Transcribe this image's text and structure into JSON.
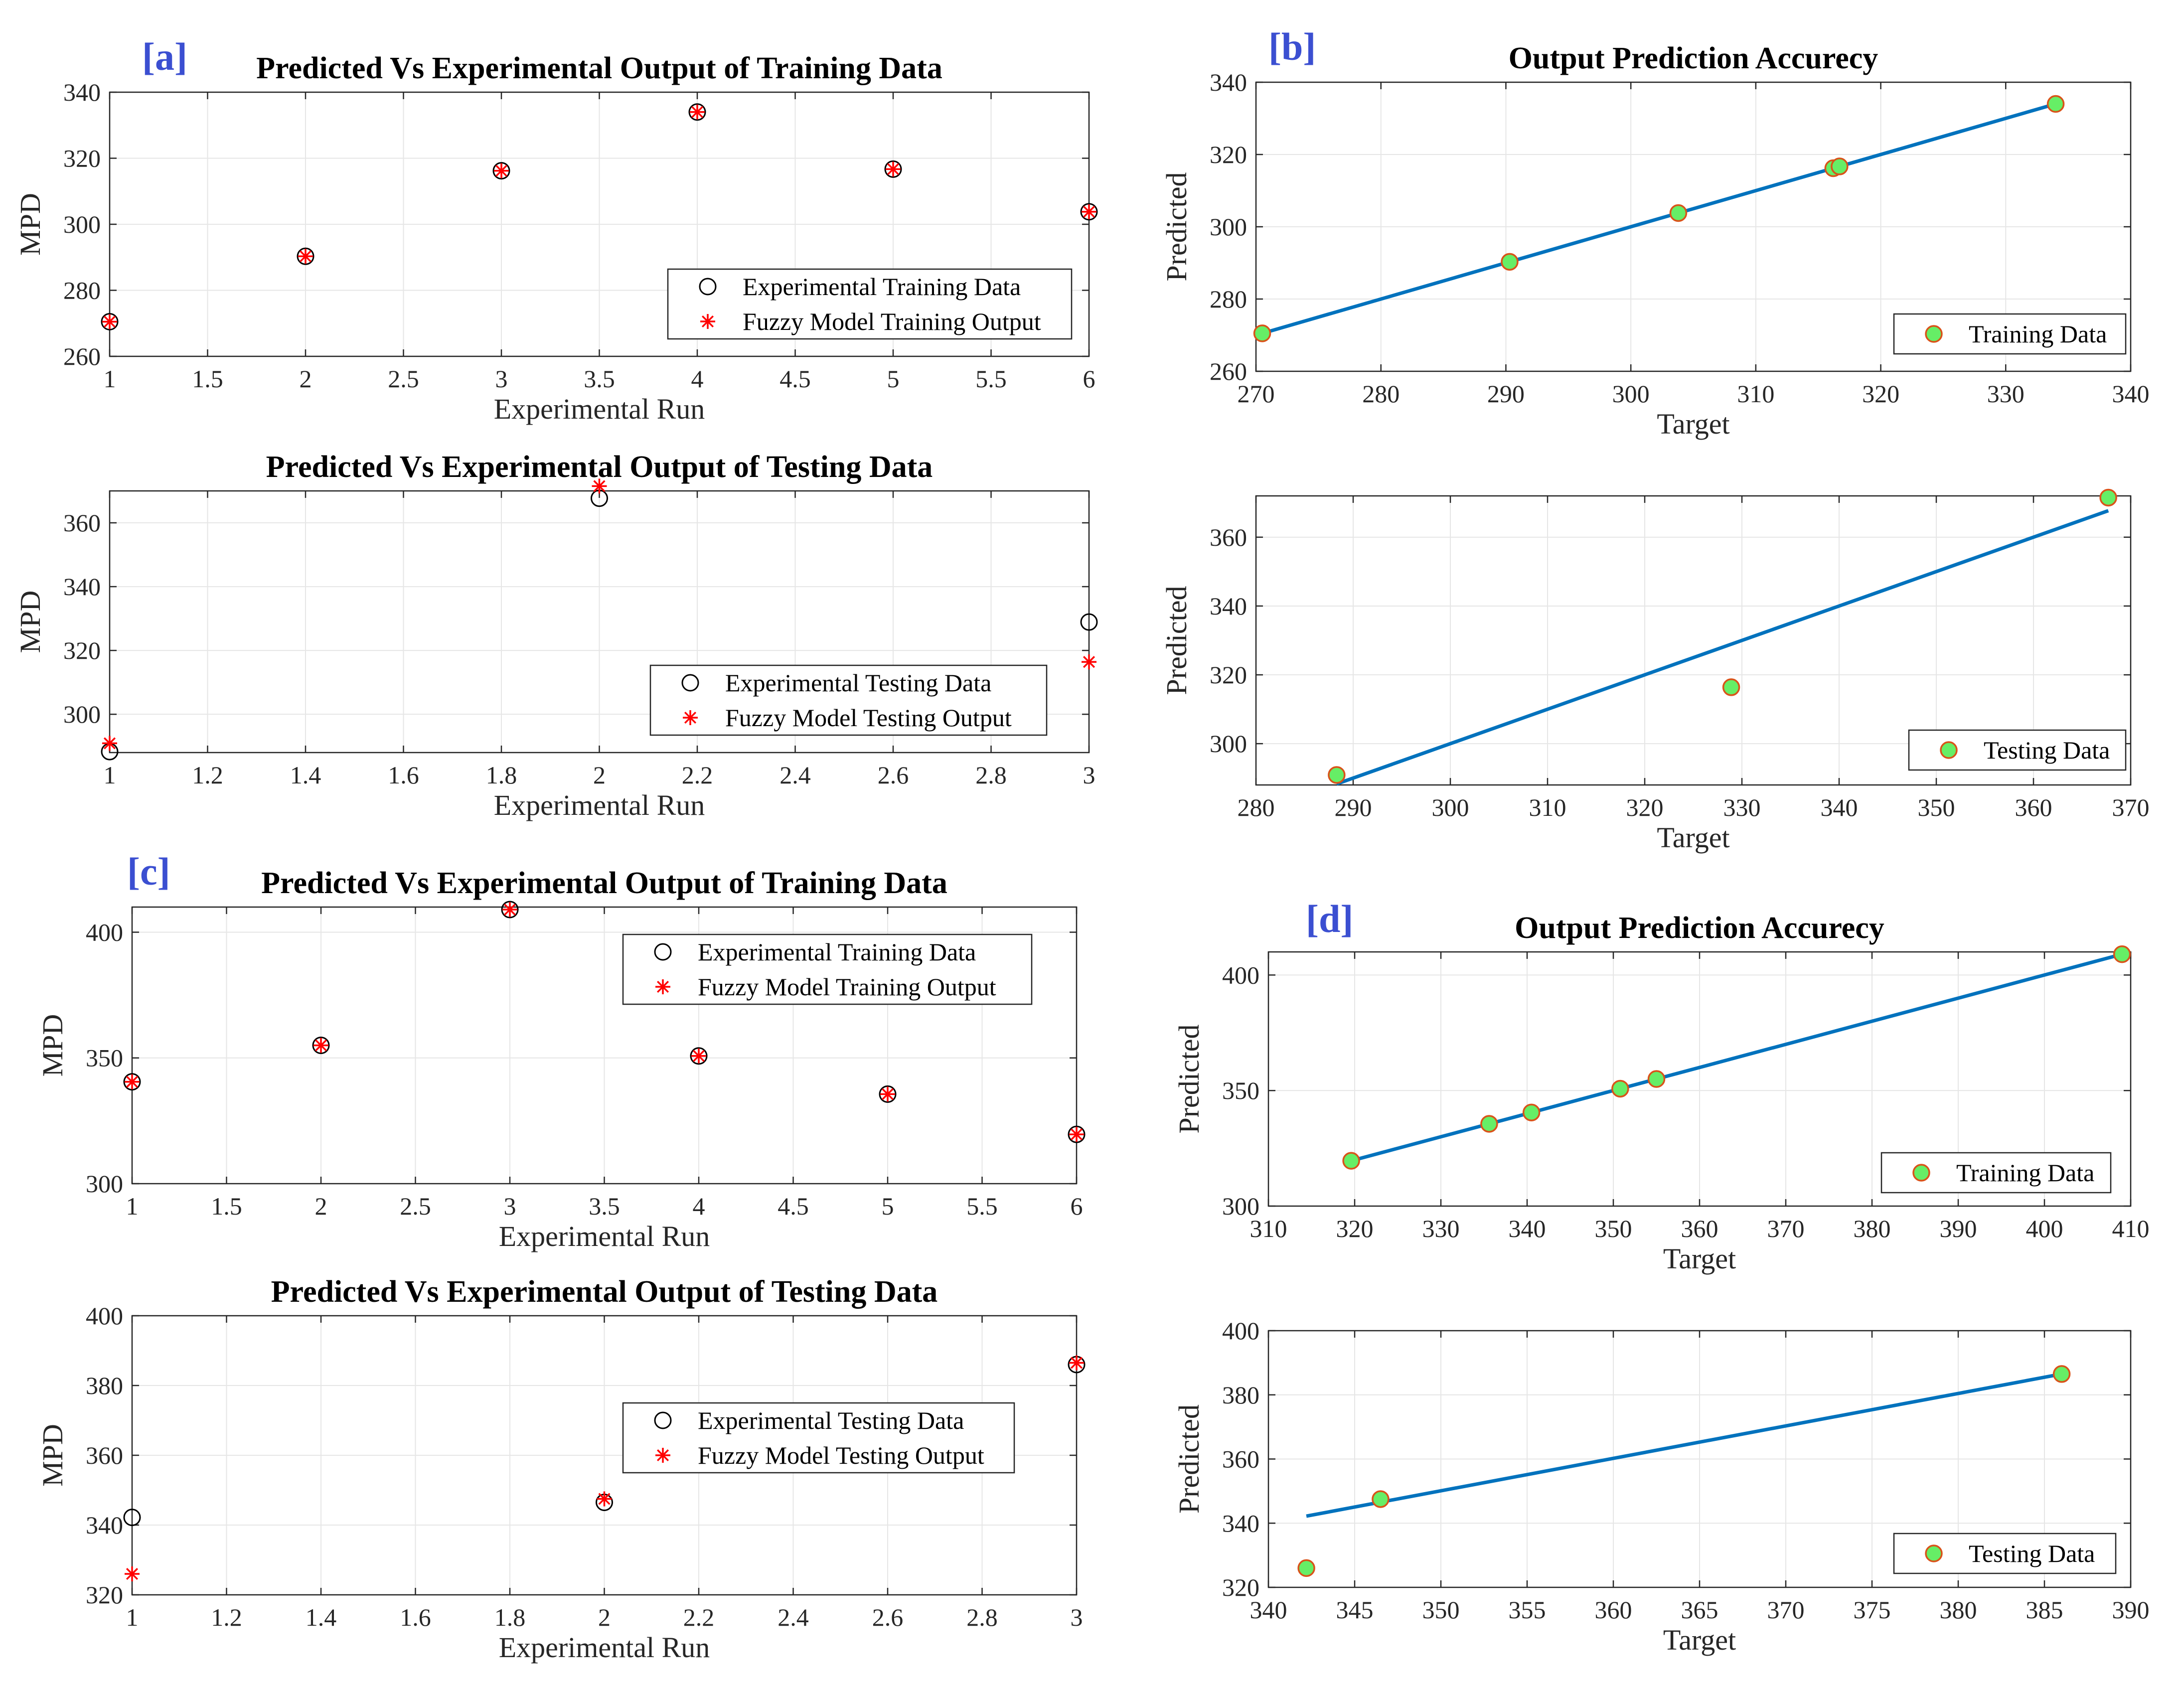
{
  "colors": {
    "marker_red": "#ff0000",
    "line_blue": "#0072bd",
    "fill_green": "#66ee66",
    "edge_orange": "#d95319",
    "grid": "#e6e6e6",
    "panel_label": "#3b4fd1"
  },
  "chart_data": [
    {
      "id": "a1",
      "panel_label": "[a]",
      "type": "scatter",
      "title": "Predicted Vs Experimental Output of Training Data",
      "xlabel": "Experimental Run",
      "ylabel": "MPD",
      "xlim": [
        1,
        6
      ],
      "ylim": [
        260,
        340
      ],
      "xticks": [
        1,
        1.5,
        2,
        2.5,
        3,
        3.5,
        4,
        4.5,
        5,
        5.5,
        6
      ],
      "yticks": [
        260,
        280,
        300,
        320,
        340
      ],
      "series": [
        {
          "name": "Experimental Training Data",
          "marker": "circle",
          "x": [
            1,
            2,
            3,
            4,
            5,
            6
          ],
          "y": [
            270.5,
            290.3,
            316.2,
            334.0,
            316.7,
            303.8
          ]
        },
        {
          "name": "Fuzzy Model Training Output",
          "marker": "asterisk",
          "x": [
            1,
            2,
            3,
            4,
            5,
            6
          ],
          "y": [
            270.5,
            290.3,
            316.2,
            334.0,
            316.7,
            303.8
          ]
        }
      ],
      "legend": "bottom-right"
    },
    {
      "id": "a2",
      "panel_label": "",
      "type": "scatter",
      "title": "Predicted Vs Experimental Output of Testing Data",
      "xlabel": "Experimental Run",
      "ylabel": "MPD",
      "xlim": [
        1,
        3
      ],
      "ylim": [
        288,
        370
      ],
      "xticks": [
        1,
        1.2,
        1.4,
        1.6,
        1.8,
        2,
        2.2,
        2.4,
        2.6,
        2.8,
        3
      ],
      "yticks": [
        300,
        320,
        340,
        360
      ],
      "series": [
        {
          "name": "Experimental Testing Data",
          "marker": "circle",
          "x": [
            1,
            2,
            3
          ],
          "y": [
            288.3,
            367.7,
            328.9
          ]
        },
        {
          "name": "Fuzzy Model Testing Output",
          "marker": "asterisk",
          "x": [
            1,
            2,
            3
          ],
          "y": [
            290.9,
            371.5,
            316.4
          ]
        }
      ],
      "legend": "bottom-right"
    },
    {
      "id": "b1",
      "panel_label": "[b]",
      "type": "scatter",
      "title": "Output Prediction Accurecy",
      "xlabel": "Target",
      "ylabel": "Predicted",
      "xlim": [
        270,
        340
      ],
      "ylim": [
        260,
        340
      ],
      "xticks": [
        270,
        280,
        290,
        300,
        310,
        320,
        330,
        340
      ],
      "yticks": [
        260,
        280,
        300,
        320,
        340
      ],
      "fit_line": {
        "x": [
          270.5,
          334.0
        ],
        "y": [
          270.5,
          334.0
        ]
      },
      "series": [
        {
          "name": "Training Data",
          "marker": "dot",
          "x": [
            270.5,
            290.3,
            303.8,
            316.2,
            316.7,
            334.0
          ],
          "y": [
            270.5,
            290.3,
            303.8,
            316.2,
            316.7,
            334.0
          ]
        }
      ],
      "legend": "bottom-right"
    },
    {
      "id": "b2",
      "panel_label": "",
      "type": "scatter",
      "title": "",
      "xlabel": "Target",
      "ylabel": "Predicted",
      "xlim": [
        280,
        370
      ],
      "ylim": [
        288,
        372
      ],
      "xticks": [
        280,
        290,
        300,
        310,
        320,
        330,
        340,
        350,
        360,
        370
      ],
      "yticks": [
        300,
        320,
        340,
        360
      ],
      "fit_line": {
        "x": [
          288.3,
          367.7
        ],
        "y": [
          288.3,
          367.7
        ]
      },
      "series": [
        {
          "name": "Testing Data",
          "marker": "dot",
          "x": [
            288.3,
            328.9,
            367.7
          ],
          "y": [
            290.9,
            316.4,
            371.5
          ]
        }
      ],
      "legend": "bottom-right"
    },
    {
      "id": "c1",
      "panel_label": "[c]",
      "type": "scatter",
      "title": "Predicted Vs Experimental Output of Training Data",
      "xlabel": "Experimental Run",
      "ylabel": "MPD",
      "xlim": [
        1,
        6
      ],
      "ylim": [
        300,
        410
      ],
      "xticks": [
        1,
        1.5,
        2,
        2.5,
        3,
        3.5,
        4,
        4.5,
        5,
        5.5,
        6
      ],
      "yticks": [
        300,
        350,
        400
      ],
      "series": [
        {
          "name": "Experimental Training Data",
          "marker": "circle",
          "x": [
            1,
            2,
            3,
            4,
            5,
            6
          ],
          "y": [
            340.5,
            355.0,
            409.0,
            350.8,
            335.6,
            319.6
          ]
        },
        {
          "name": "Fuzzy Model Training Output",
          "marker": "asterisk",
          "x": [
            1,
            2,
            3,
            4,
            5,
            6
          ],
          "y": [
            340.5,
            355.0,
            409.0,
            350.8,
            335.6,
            319.6
          ]
        }
      ],
      "legend": "top-right"
    },
    {
      "id": "c2",
      "panel_label": "",
      "type": "scatter",
      "title": "Predicted Vs Experimental Output of Testing Data",
      "xlabel": "Experimental Run",
      "ylabel": "MPD",
      "xlim": [
        1,
        3
      ],
      "ylim": [
        320,
        400
      ],
      "xticks": [
        1,
        1.2,
        1.4,
        1.6,
        1.8,
        2,
        2.2,
        2.4,
        2.6,
        2.8,
        3
      ],
      "yticks": [
        320,
        340,
        360,
        380,
        400
      ],
      "series": [
        {
          "name": "Experimental Testing Data",
          "marker": "circle",
          "x": [
            1,
            2,
            3
          ],
          "y": [
            342.2,
            346.5,
            386.0
          ]
        },
        {
          "name": "Fuzzy Model Testing Output",
          "marker": "asterisk",
          "x": [
            1,
            2,
            3
          ],
          "y": [
            326.0,
            347.5,
            386.5
          ]
        }
      ],
      "legend": "center-right"
    },
    {
      "id": "d1",
      "panel_label": "[d]",
      "type": "scatter",
      "title": "Output Prediction Accurecy",
      "xlabel": "Target",
      "ylabel": "Predicted",
      "xlim": [
        310,
        410
      ],
      "ylim": [
        300,
        410
      ],
      "xticks": [
        310,
        320,
        330,
        340,
        350,
        360,
        370,
        380,
        390,
        400,
        410
      ],
      "yticks": [
        300,
        350,
        400
      ],
      "fit_line": {
        "x": [
          319.6,
          409.0
        ],
        "y": [
          319.6,
          409.0
        ]
      },
      "series": [
        {
          "name": "Training Data",
          "marker": "dot",
          "x": [
            319.6,
            335.6,
            340.5,
            350.8,
            355.0,
            409.0
          ],
          "y": [
            319.6,
            335.6,
            340.5,
            350.8,
            355.0,
            409.0
          ]
        }
      ],
      "legend": "bottom-right"
    },
    {
      "id": "d2",
      "panel_label": "",
      "type": "scatter",
      "title": "",
      "xlabel": "Target",
      "ylabel": "Predicted",
      "xlim": [
        340,
        390
      ],
      "ylim": [
        320,
        400
      ],
      "xticks": [
        340,
        345,
        350,
        355,
        360,
        365,
        370,
        375,
        380,
        385,
        390
      ],
      "yticks": [
        320,
        340,
        360,
        380,
        400
      ],
      "fit_line": {
        "x": [
          342.2,
          386.0
        ],
        "y": [
          342.2,
          386.5
        ]
      },
      "series": [
        {
          "name": "Testing Data",
          "marker": "dot",
          "x": [
            342.2,
            346.5,
            386.0
          ],
          "y": [
            326.0,
            347.5,
            386.5
          ]
        }
      ],
      "legend": "bottom-right"
    }
  ]
}
